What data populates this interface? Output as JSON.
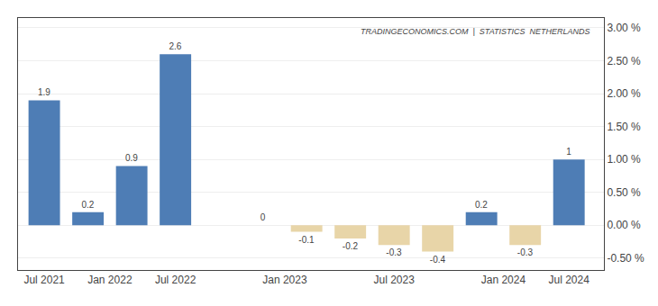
{
  "chart_data": {
    "type": "bar",
    "x": [
      0,
      1,
      2,
      3,
      5,
      6,
      7,
      8,
      9,
      10,
      11,
      12
    ],
    "values": [
      1.9,
      0.2,
      0.9,
      2.6,
      0.0,
      -0.1,
      -0.2,
      -0.3,
      -0.4,
      0.2,
      -0.3,
      1.0
    ],
    "colors": [
      "#4e7db5",
      "#4e7db5",
      "#4e7db5",
      "#4e7db5",
      "#4e7db5",
      "#e8d5a8",
      "#e8d5a8",
      "#e8d5a8",
      "#e8d5a8",
      "#4e7db5",
      "#e8d5a8",
      "#4e7db5"
    ],
    "data_labels": true,
    "xlim": [
      -0.6,
      12.8
    ],
    "xticks": [
      {
        "value": 0,
        "label": "Jul 2021"
      },
      {
        "value": 1.5,
        "label": "Jan 2022"
      },
      {
        "value": 3,
        "label": "Jul 2022"
      },
      {
        "value": 5.5,
        "label": "Jan 2023"
      },
      {
        "value": 8,
        "label": "Jul 2023"
      },
      {
        "value": 10.5,
        "label": "Jan 2024"
      },
      {
        "value": 12,
        "label": "Jul 2024"
      }
    ],
    "ylim": [
      -0.68,
      3.15
    ],
    "yticks": [
      {
        "value": -0.5,
        "label": "-0.50 %"
      },
      {
        "value": 0.0,
        "label": "0.00 %"
      },
      {
        "value": 0.5,
        "label": "0.50 %"
      },
      {
        "value": 1.0,
        "label": "1.00 %"
      },
      {
        "value": 1.5,
        "label": "1.50 %"
      },
      {
        "value": 2.0,
        "label": "2.00 %"
      },
      {
        "value": 2.5,
        "label": "2.50 %"
      },
      {
        "value": 3.0,
        "label": "3.00 %"
      }
    ],
    "grid": true,
    "annotations": [
      "TRADINGECONOMICS.COM  |  STATISTICS  NETHERLANDS"
    ]
  }
}
